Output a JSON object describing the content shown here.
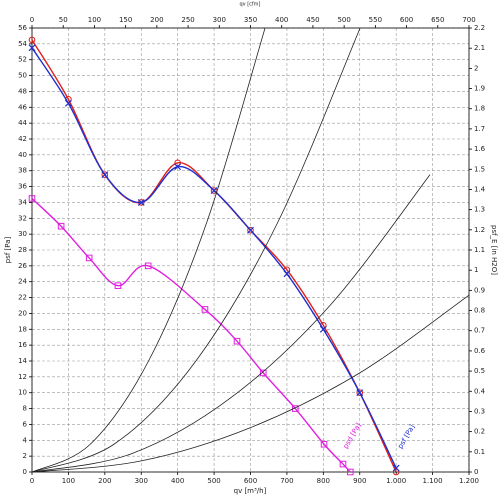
{
  "chart_data": {
    "type": "line",
    "xlabel": "qv [m³/h]",
    "x2label": "qv [cfm]",
    "ylabel": "psf [Pa]",
    "y2label": "psf_E [in H2O]",
    "xlim": [
      0,
      1200
    ],
    "xticks": [
      0,
      100,
      200,
      300,
      400,
      500,
      600,
      700,
      800,
      900,
      {
        "value": 1000,
        "label": "1.000"
      },
      {
        "value": 1100,
        "label": "1.100"
      },
      {
        "value": 1200,
        "label": "1.200"
      }
    ],
    "x2lim": [
      0,
      700
    ],
    "x2ticks": [
      0,
      50,
      100,
      150,
      200,
      250,
      300,
      350,
      400,
      450,
      500,
      550,
      600,
      650,
      700
    ],
    "ylim": [
      0,
      56
    ],
    "yticks": [
      0,
      2,
      4,
      6,
      8,
      10,
      12,
      14,
      16,
      18,
      20,
      22,
      24,
      26,
      28,
      30,
      32,
      34,
      36,
      38,
      40,
      42,
      44,
      46,
      48,
      50,
      52,
      54,
      56
    ],
    "y2lim": [
      0,
      2.2
    ],
    "y2ticks": [
      0,
      0.1,
      0.2,
      0.3,
      0.4,
      0.5,
      0.6,
      0.7,
      0.8,
      0.9,
      1,
      1.1,
      1.2,
      1.3,
      1.4,
      1.5,
      1.6,
      1.7,
      1.8,
      1.9,
      2,
      2.1,
      2.2
    ],
    "grid": true,
    "series": [
      {
        "color": "#e0201a",
        "marker": "circle",
        "x": [
          0,
          100,
          200,
          300,
          400,
          500,
          600,
          700,
          800,
          900,
          1000
        ],
        "values": [
          54.5,
          47,
          37.5,
          34,
          39,
          35.5,
          30.5,
          25.5,
          18.5,
          10,
          0
        ]
      },
      {
        "color": "#2030d0",
        "marker": "cross",
        "x": [
          0,
          100,
          200,
          300,
          400,
          500,
          600,
          700,
          800,
          900,
          1000
        ],
        "values": [
          53.5,
          46.5,
          37.5,
          34,
          38.5,
          35.5,
          30.5,
          25,
          18,
          10,
          0.5
        ]
      },
      {
        "color": "#e020e0",
        "marker": "square",
        "x": [
          0,
          80,
          157,
          236,
          319,
          475,
          563,
          635,
          723,
          802,
          854,
          874
        ],
        "values": [
          34.5,
          31,
          27,
          23.5,
          26,
          20.5,
          16.5,
          12.5,
          8,
          3.5,
          1,
          0
        ]
      },
      {
        "color": "#222222",
        "marker": "none",
        "x": [
          0,
          160,
          320,
          480,
          640
        ],
        "values": [
          0,
          3.5,
          14,
          31.5,
          56
        ]
      },
      {
        "color": "#222222",
        "marker": "none",
        "x": [
          0,
          225,
          450,
          675,
          901
        ],
        "values": [
          0,
          3.5,
          14,
          31.5,
          56
        ]
      },
      {
        "color": "#222222",
        "marker": "none",
        "x": [
          0,
          273,
          547,
          820,
          1093
        ],
        "values": [
          0,
          2.3,
          9.4,
          21.1,
          37.5
        ]
      },
      {
        "color": "#222222",
        "marker": "none",
        "x": [
          0,
          300,
          600,
          900,
          1200
        ],
        "values": [
          0,
          1.4,
          5.6,
          12.5,
          22.3
        ]
      }
    ],
    "annotations": [
      {
        "text": "psf [Pa]",
        "x": 1010,
        "y": 3,
        "color": "#2030d0"
      },
      {
        "text": "psd [Pa]",
        "x": 860,
        "y": 3,
        "color": "#e020e0"
      }
    ]
  }
}
